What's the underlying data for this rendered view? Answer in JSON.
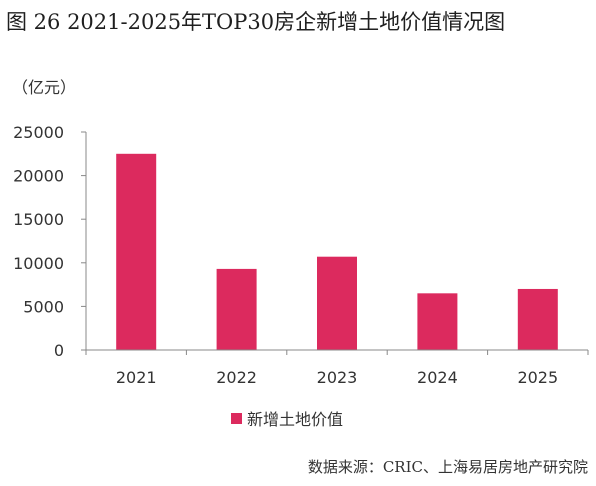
{
  "title": "图 26  2021-2025年TOP30房企新增土地价值情况图",
  "unit_label": "（亿元）",
  "source": "数据来源：CRIC、上海易居房地产研究院",
  "colors": {
    "bar": "#DC2A5E",
    "axis": "#888888"
  },
  "chart_data": {
    "type": "bar",
    "categories": [
      "2021",
      "2022",
      "2023",
      "2024",
      "2025"
    ],
    "series": [
      {
        "name": "新增土地价值",
        "values": [
          22500,
          9300,
          10700,
          6500,
          7000
        ]
      }
    ],
    "ylim": [
      0,
      25000
    ],
    "yticks": [
      "0",
      "5000",
      "10000",
      "15000",
      "20000",
      "25000"
    ],
    "ylabel": "（亿元）",
    "grid": false,
    "legend": "bottom"
  }
}
